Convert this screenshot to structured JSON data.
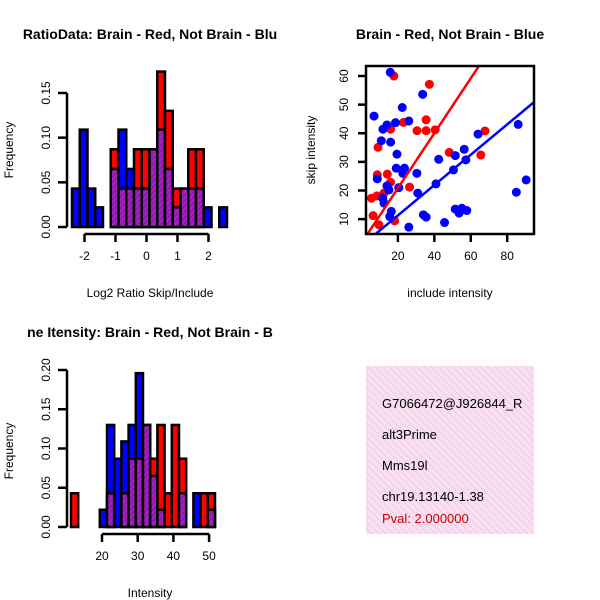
{
  "colors": {
    "red": "#ff0000",
    "blue": "#0000ff",
    "purple": "#9a1ab0",
    "pval": "#cc0000",
    "panel": "#f6dcf0"
  },
  "chart_data": [
    {
      "type": "bar",
      "title": "RatioData: Brain - Red, Not Brain - Blu",
      "xlabel": "Log2 Ratio Skip/Include",
      "ylabel": "Frequency",
      "bin_start": -2.5,
      "bin_width": 0.25,
      "xticks": [
        "-2",
        "-1",
        "0",
        "1",
        "2"
      ],
      "xtick_values": [
        -2,
        -1,
        0,
        1,
        2
      ],
      "yticks": [
        "0.00",
        "0.05",
        "0.10",
        "0.15"
      ],
      "ytick_values": [
        0,
        0.05,
        0.1,
        0.15
      ],
      "ylim": [
        0,
        0.18
      ],
      "series": [
        {
          "name": "Not Brain",
          "color": "blue",
          "values": [
            0.043,
            0.109,
            0.043,
            0.022,
            0,
            0.065,
            0.109,
            0.065,
            0.043,
            0.043,
            0.087,
            0.109,
            0.065,
            0.022,
            0.043,
            0.043,
            0.043,
            0.022,
            0,
            0.022
          ]
        },
        {
          "name": "Brain",
          "color": "red",
          "values": [
            0,
            0,
            0,
            0,
            0,
            0.087,
            0.043,
            0.043,
            0.087,
            0.087,
            0.087,
            0.174,
            0.13,
            0.043,
            0.043,
            0.087,
            0.087,
            0,
            0,
            0
          ]
        }
      ]
    },
    {
      "type": "scatter",
      "title": "Brain - Red, Not Brain - Blue",
      "xlabel": "include intensity",
      "ylabel": "skip intensity",
      "xlim": [
        2.5,
        94.7
      ],
      "ylim": [
        4.8,
        63.5
      ],
      "xticks": [
        "20",
        "40",
        "60",
        "80"
      ],
      "xtick_values": [
        20,
        40,
        60,
        80
      ],
      "yticks": [
        "10",
        "20",
        "30",
        "40",
        "50",
        "60"
      ],
      "ytick_values": [
        10,
        20,
        30,
        40,
        50,
        60
      ],
      "series": [
        {
          "name": "Brain",
          "color": "red",
          "fit": {
            "slope": 0.96,
            "intercept": 1.6
          },
          "points": [
            [
              17.8,
              60
            ],
            [
              37.3,
              57.1
            ],
            [
              35.5,
              44.7
            ],
            [
              23.1,
              43.8
            ],
            [
              16,
              41.4
            ],
            [
              30.5,
              40.9
            ],
            [
              35.5,
              40.9
            ],
            [
              40.5,
              41.2
            ],
            [
              9.1,
              35.1
            ],
            [
              48.2,
              33.3
            ],
            [
              65.5,
              32.4
            ],
            [
              67.8,
              40.8
            ],
            [
              8.7,
              25.5
            ],
            [
              14.2,
              25.7
            ],
            [
              16,
              22.9
            ],
            [
              26.4,
              21.2
            ],
            [
              5.5,
              17.3
            ],
            [
              8.5,
              18.1
            ],
            [
              12.4,
              19.1
            ],
            [
              6.4,
              11.2
            ],
            [
              9.6,
              8
            ],
            [
              18.2,
              9.4
            ]
          ]
        },
        {
          "name": "Not Brain",
          "color": "blue",
          "fit": {
            "slope": 0.53,
            "intercept": 0.7
          },
          "points": [
            [
              15.8,
              61.3
            ],
            [
              6.9,
              46
            ],
            [
              11.8,
              41.4
            ],
            [
              14,
              42.9
            ],
            [
              18.7,
              43.7
            ],
            [
              22.4,
              49
            ],
            [
              26,
              44.3
            ],
            [
              33.6,
              53.6
            ],
            [
              10.9,
              37.4
            ],
            [
              16,
              36.9
            ],
            [
              19.5,
              32.7
            ],
            [
              19.1,
              27.8
            ],
            [
              23.6,
              27.8
            ],
            [
              22.7,
              26
            ],
            [
              30.4,
              26
            ],
            [
              8.7,
              24.1
            ],
            [
              14,
              21.6
            ],
            [
              15.1,
              20.2
            ],
            [
              20.5,
              21
            ],
            [
              30.9,
              19.1
            ],
            [
              11.7,
              17.3
            ],
            [
              12.4,
              15.6
            ],
            [
              16.4,
              12.7
            ],
            [
              15.5,
              10.9
            ],
            [
              26,
              7.2
            ],
            [
              34,
              11.5
            ],
            [
              35.5,
              10.7
            ],
            [
              45.6,
              8.8
            ],
            [
              40.9,
              22.3
            ],
            [
              42.4,
              30.9
            ],
            [
              50.5,
              27.2
            ],
            [
              51.5,
              32.2
            ],
            [
              56.4,
              34.4
            ],
            [
              57.3,
              30.7
            ],
            [
              51.5,
              13.5
            ],
            [
              53.6,
              12.1
            ],
            [
              55.1,
              13.8
            ],
            [
              57.8,
              13
            ],
            [
              64,
              39.7
            ],
            [
              86,
              43.1
            ],
            [
              85,
              19.4
            ],
            [
              90.4,
              23.7
            ]
          ]
        }
      ]
    },
    {
      "type": "bar",
      "title": "ne Itensity: Brain - Red, Not Brain - B",
      "xlabel": "Intensity",
      "ylabel": "Frequency",
      "bin_start": 12,
      "bin_width": 2,
      "xticks": [
        "20",
        "30",
        "40",
        "50"
      ],
      "xtick_values": [
        20,
        30,
        40,
        50
      ],
      "yticks": [
        "0.00",
        "0.05",
        "0.10",
        "0.15",
        "0.20"
      ],
      "ytick_values": [
        0,
        0.05,
        0.1,
        0.15,
        0.2
      ],
      "ylim": [
        0,
        0.2
      ],
      "series": [
        {
          "name": "Not Brain",
          "color": "blue",
          "values": [
            0,
            0,
            0,
            0,
            0.022,
            0.13,
            0.087,
            0.109,
            0.13,
            0.196,
            0.13,
            0.065,
            0.022,
            0,
            0,
            0.043,
            0,
            0.043,
            0,
            0.022
          ]
        },
        {
          "name": "Brain",
          "color": "red",
          "values": [
            0.043,
            0,
            0,
            0,
            0,
            0.043,
            0,
            0.043,
            0.087,
            0.087,
            0.13,
            0.087,
            0.13,
            0.043,
            0.13,
            0.087,
            0,
            0,
            0.043,
            0.043
          ]
        }
      ]
    }
  ],
  "info": {
    "id": "G7066472@J926844_R",
    "event_type": "alt3Prime",
    "gene": "Mms19l",
    "location": "chr19.13140-1.38",
    "pval": "Pval: 2.000000"
  }
}
